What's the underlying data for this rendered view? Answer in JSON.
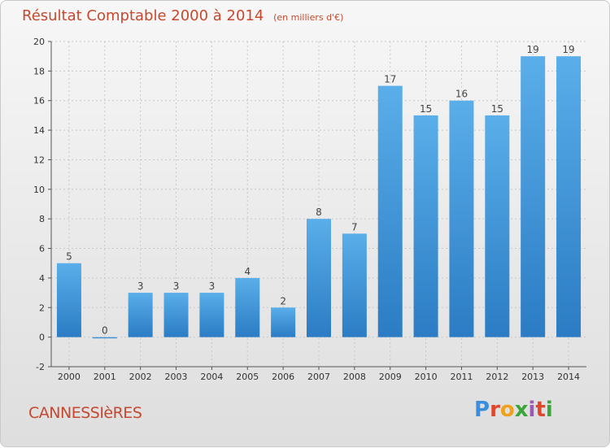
{
  "header": {
    "title": "Résultat Comptable 2000 à 2014",
    "subtitle": "(en milliers d'€)"
  },
  "footer": {
    "commune": "CANNESSIèRES",
    "logo_letters": [
      "P",
      "r",
      "o",
      "x",
      "i",
      "t",
      "i"
    ]
  },
  "colors": {
    "title": "#c5492f",
    "bar_top": "#5aaee9",
    "bar_bottom": "#2b7cc4",
    "logo": [
      "#3b8ede",
      "#e0462b",
      "#f0a11b",
      "#3aa53a",
      "#9b59b6",
      "#e0462b",
      "#3aa53a"
    ]
  },
  "chart_data": {
    "type": "bar",
    "title": "Résultat Comptable 2000 à 2014",
    "subtitle": "(en milliers d'€)",
    "categories": [
      "2000",
      "2001",
      "2002",
      "2003",
      "2004",
      "2005",
      "2006",
      "2007",
      "2008",
      "2009",
      "2010",
      "2011",
      "2012",
      "2013",
      "2014"
    ],
    "values": [
      5,
      0,
      3,
      3,
      3,
      4,
      2,
      8,
      7,
      17,
      15,
      16,
      15,
      19,
      19
    ],
    "ylim": [
      -2,
      20
    ],
    "yticks": [
      -2,
      0,
      2,
      4,
      6,
      8,
      10,
      12,
      14,
      16,
      18,
      20
    ],
    "grid": true,
    "xlabel": "",
    "ylabel": ""
  }
}
